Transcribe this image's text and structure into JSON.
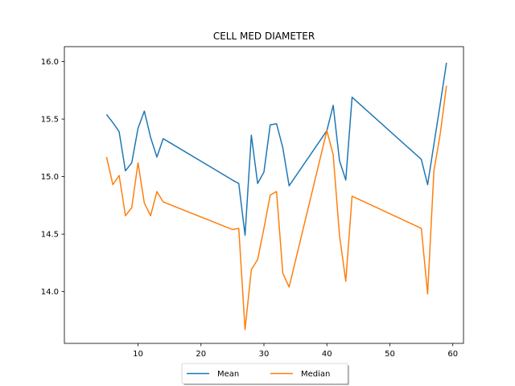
{
  "chart_data": {
    "type": "line",
    "title": "CELL MED DIAMETER",
    "xlabel": "",
    "ylabel": "",
    "xlim": [
      -1.7,
      61.7
    ],
    "ylim": [
      13.55,
      16.13
    ],
    "xticks": [
      10,
      20,
      30,
      40,
      50,
      60
    ],
    "yticks": [
      14.0,
      14.5,
      15.0,
      15.5,
      16.0
    ],
    "xtick_labels": [
      "10",
      "20",
      "30",
      "40",
      "50",
      "60"
    ],
    "ytick_labels": [
      "14.0",
      "14.5",
      "15.0",
      "15.5",
      "16.0"
    ],
    "grid": false,
    "legend_position": "bottom-center",
    "x": [
      5,
      6,
      7,
      8,
      9,
      10,
      11,
      12,
      13,
      14,
      25,
      26,
      27,
      28,
      29,
      30,
      31,
      32,
      33,
      34,
      40,
      41,
      42,
      43,
      44,
      55,
      56,
      57,
      58,
      59
    ],
    "series": [
      {
        "name": "Mean",
        "color": "#1f77b4",
        "values": [
          15.54,
          15.47,
          15.39,
          15.05,
          15.12,
          15.42,
          15.57,
          15.34,
          15.17,
          15.33,
          14.97,
          14.94,
          14.49,
          15.36,
          14.94,
          15.04,
          15.45,
          15.46,
          15.25,
          14.92,
          15.4,
          15.62,
          15.14,
          14.97,
          15.69,
          15.15,
          14.93,
          15.28,
          15.63,
          15.99
        ]
      },
      {
        "name": "Median",
        "color": "#ff7f0e",
        "values": [
          15.17,
          14.93,
          15.01,
          14.66,
          14.73,
          15.12,
          14.77,
          14.66,
          14.87,
          14.78,
          14.54,
          14.55,
          13.67,
          14.19,
          14.28,
          14.55,
          14.84,
          14.87,
          14.16,
          14.04,
          15.4,
          15.19,
          14.49,
          14.09,
          14.83,
          14.55,
          13.98,
          15.05,
          15.37,
          15.79
        ]
      }
    ]
  }
}
